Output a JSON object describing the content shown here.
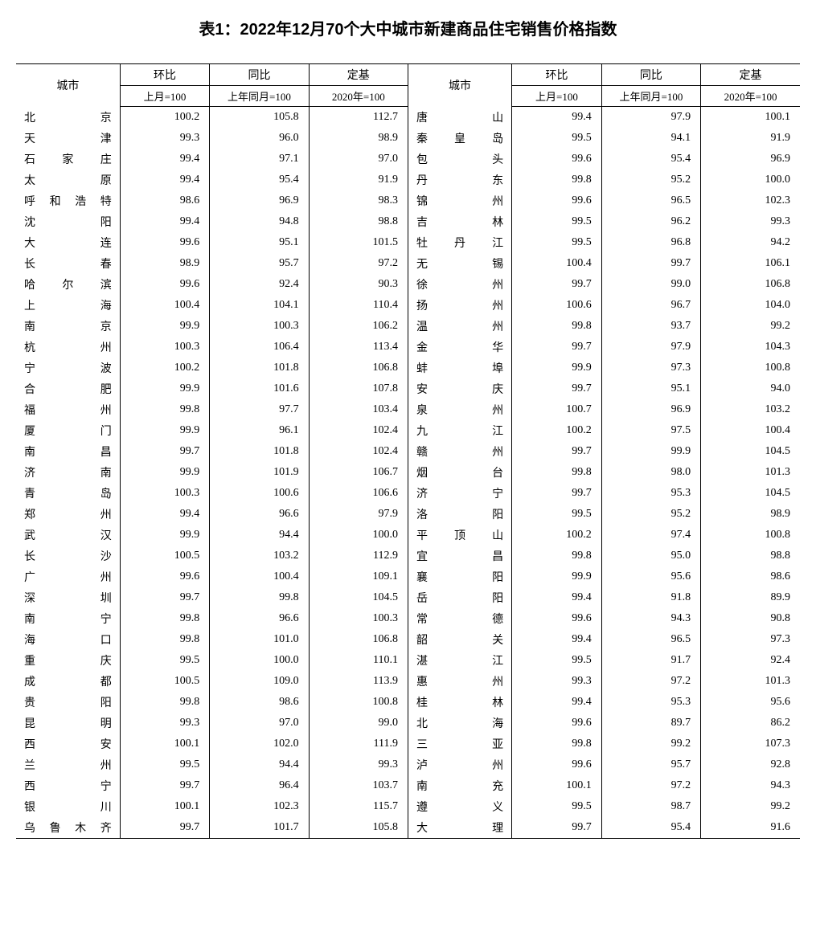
{
  "title": "表1：2022年12月70个大中城市新建商品住宅销售价格指数",
  "headers": {
    "city": "城市",
    "mom": "环比",
    "yoy": "同比",
    "base": "定基",
    "mom_sub": "上月=100",
    "yoy_sub": "上年同月=100",
    "base_sub": "2020年=100"
  },
  "style": {
    "title_fontsize": 20,
    "body_fontsize": 14,
    "border_color": "#000000",
    "background": "#ffffff",
    "text_color": "#000000"
  },
  "rows_left": [
    {
      "city": "北京",
      "mom": "100.2",
      "yoy": "105.8",
      "base": "112.7"
    },
    {
      "city": "天津",
      "mom": "99.3",
      "yoy": "96.0",
      "base": "98.9"
    },
    {
      "city": "石家庄",
      "mom": "99.4",
      "yoy": "97.1",
      "base": "97.0"
    },
    {
      "city": "太原",
      "mom": "99.4",
      "yoy": "95.4",
      "base": "91.9"
    },
    {
      "city": "呼和浩特",
      "mom": "98.6",
      "yoy": "96.9",
      "base": "98.3"
    },
    {
      "city": "沈阳",
      "mom": "99.4",
      "yoy": "94.8",
      "base": "98.8"
    },
    {
      "city": "大连",
      "mom": "99.6",
      "yoy": "95.1",
      "base": "101.5"
    },
    {
      "city": "长春",
      "mom": "98.9",
      "yoy": "95.7",
      "base": "97.2"
    },
    {
      "city": "哈尔滨",
      "mom": "99.6",
      "yoy": "92.4",
      "base": "90.3"
    },
    {
      "city": "上海",
      "mom": "100.4",
      "yoy": "104.1",
      "base": "110.4"
    },
    {
      "city": "南京",
      "mom": "99.9",
      "yoy": "100.3",
      "base": "106.2"
    },
    {
      "city": "杭州",
      "mom": "100.3",
      "yoy": "106.4",
      "base": "113.4"
    },
    {
      "city": "宁波",
      "mom": "100.2",
      "yoy": "101.8",
      "base": "106.8"
    },
    {
      "city": "合肥",
      "mom": "99.9",
      "yoy": "101.6",
      "base": "107.8"
    },
    {
      "city": "福州",
      "mom": "99.8",
      "yoy": "97.7",
      "base": "103.4"
    },
    {
      "city": "厦门",
      "mom": "99.9",
      "yoy": "96.1",
      "base": "102.4"
    },
    {
      "city": "南昌",
      "mom": "99.7",
      "yoy": "101.8",
      "base": "102.4"
    },
    {
      "city": "济南",
      "mom": "99.9",
      "yoy": "101.9",
      "base": "106.7"
    },
    {
      "city": "青岛",
      "mom": "100.3",
      "yoy": "100.6",
      "base": "106.6"
    },
    {
      "city": "郑州",
      "mom": "99.4",
      "yoy": "96.6",
      "base": "97.9"
    },
    {
      "city": "武汉",
      "mom": "99.9",
      "yoy": "94.4",
      "base": "100.0"
    },
    {
      "city": "长沙",
      "mom": "100.5",
      "yoy": "103.2",
      "base": "112.9"
    },
    {
      "city": "广州",
      "mom": "99.6",
      "yoy": "100.4",
      "base": "109.1"
    },
    {
      "city": "深圳",
      "mom": "99.7",
      "yoy": "99.8",
      "base": "104.5"
    },
    {
      "city": "南宁",
      "mom": "99.8",
      "yoy": "96.6",
      "base": "100.3"
    },
    {
      "city": "海口",
      "mom": "99.8",
      "yoy": "101.0",
      "base": "106.8"
    },
    {
      "city": "重庆",
      "mom": "99.5",
      "yoy": "100.0",
      "base": "110.1"
    },
    {
      "city": "成都",
      "mom": "100.5",
      "yoy": "109.0",
      "base": "113.9"
    },
    {
      "city": "贵阳",
      "mom": "99.8",
      "yoy": "98.6",
      "base": "100.8"
    },
    {
      "city": "昆明",
      "mom": "99.3",
      "yoy": "97.0",
      "base": "99.0"
    },
    {
      "city": "西安",
      "mom": "100.1",
      "yoy": "102.0",
      "base": "111.9"
    },
    {
      "city": "兰州",
      "mom": "99.5",
      "yoy": "94.4",
      "base": "99.3"
    },
    {
      "city": "西宁",
      "mom": "99.7",
      "yoy": "96.4",
      "base": "103.7"
    },
    {
      "city": "银川",
      "mom": "100.1",
      "yoy": "102.3",
      "base": "115.7"
    },
    {
      "city": "乌鲁木齐",
      "mom": "99.7",
      "yoy": "101.7",
      "base": "105.8"
    }
  ],
  "rows_right": [
    {
      "city": "唐山",
      "mom": "99.4",
      "yoy": "97.9",
      "base": "100.1"
    },
    {
      "city": "秦皇岛",
      "mom": "99.5",
      "yoy": "94.1",
      "base": "91.9"
    },
    {
      "city": "包头",
      "mom": "99.6",
      "yoy": "95.4",
      "base": "96.9"
    },
    {
      "city": "丹东",
      "mom": "99.8",
      "yoy": "95.2",
      "base": "100.0"
    },
    {
      "city": "锦州",
      "mom": "99.6",
      "yoy": "96.5",
      "base": "102.3"
    },
    {
      "city": "吉林",
      "mom": "99.5",
      "yoy": "96.2",
      "base": "99.3"
    },
    {
      "city": "牡丹江",
      "mom": "99.5",
      "yoy": "96.8",
      "base": "94.2"
    },
    {
      "city": "无锡",
      "mom": "100.4",
      "yoy": "99.7",
      "base": "106.1"
    },
    {
      "city": "徐州",
      "mom": "99.7",
      "yoy": "99.0",
      "base": "106.8"
    },
    {
      "city": "扬州",
      "mom": "100.6",
      "yoy": "96.7",
      "base": "104.0"
    },
    {
      "city": "温州",
      "mom": "99.8",
      "yoy": "93.7",
      "base": "99.2"
    },
    {
      "city": "金华",
      "mom": "99.7",
      "yoy": "97.9",
      "base": "104.3"
    },
    {
      "city": "蚌埠",
      "mom": "99.9",
      "yoy": "97.3",
      "base": "100.8"
    },
    {
      "city": "安庆",
      "mom": "99.7",
      "yoy": "95.1",
      "base": "94.0"
    },
    {
      "city": "泉州",
      "mom": "100.7",
      "yoy": "96.9",
      "base": "103.2"
    },
    {
      "city": "九江",
      "mom": "100.2",
      "yoy": "97.5",
      "base": "100.4"
    },
    {
      "city": "赣州",
      "mom": "99.7",
      "yoy": "99.9",
      "base": "104.5"
    },
    {
      "city": "烟台",
      "mom": "99.8",
      "yoy": "98.0",
      "base": "101.3"
    },
    {
      "city": "济宁",
      "mom": "99.7",
      "yoy": "95.3",
      "base": "104.5"
    },
    {
      "city": "洛阳",
      "mom": "99.5",
      "yoy": "95.2",
      "base": "98.9"
    },
    {
      "city": "平顶山",
      "mom": "100.2",
      "yoy": "97.4",
      "base": "100.8"
    },
    {
      "city": "宜昌",
      "mom": "99.8",
      "yoy": "95.0",
      "base": "98.8"
    },
    {
      "city": "襄阳",
      "mom": "99.9",
      "yoy": "95.6",
      "base": "98.6"
    },
    {
      "city": "岳阳",
      "mom": "99.4",
      "yoy": "91.8",
      "base": "89.9"
    },
    {
      "city": "常德",
      "mom": "99.6",
      "yoy": "94.3",
      "base": "90.8"
    },
    {
      "city": "韶关",
      "mom": "99.4",
      "yoy": "96.5",
      "base": "97.3"
    },
    {
      "city": "湛江",
      "mom": "99.5",
      "yoy": "91.7",
      "base": "92.4"
    },
    {
      "city": "惠州",
      "mom": "99.3",
      "yoy": "97.2",
      "base": "101.3"
    },
    {
      "city": "桂林",
      "mom": "99.4",
      "yoy": "95.3",
      "base": "95.6"
    },
    {
      "city": "北海",
      "mom": "99.6",
      "yoy": "89.7",
      "base": "86.2"
    },
    {
      "city": "三亚",
      "mom": "99.8",
      "yoy": "99.2",
      "base": "107.3"
    },
    {
      "city": "泸州",
      "mom": "99.6",
      "yoy": "95.7",
      "base": "92.8"
    },
    {
      "city": "南充",
      "mom": "100.1",
      "yoy": "97.2",
      "base": "94.3"
    },
    {
      "city": "遵义",
      "mom": "99.5",
      "yoy": "98.7",
      "base": "99.2"
    },
    {
      "city": "大理",
      "mom": "99.7",
      "yoy": "95.4",
      "base": "91.6"
    }
  ]
}
